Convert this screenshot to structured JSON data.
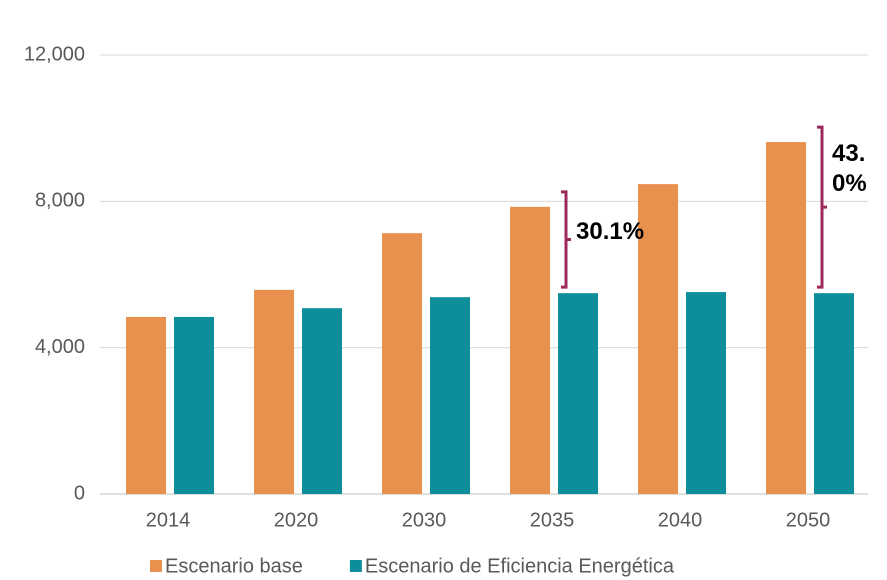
{
  "chart_data": {
    "type": "bar",
    "categories": [
      "2014",
      "2020",
      "2030",
      "2035",
      "2040",
      "2050"
    ],
    "series": [
      {
        "name": "Escenario base",
        "color": "#E8904E",
        "values": [
          4840,
          5580,
          7130,
          7850,
          8470,
          9620
        ]
      },
      {
        "name": "Escenario de Eficiencia Energética",
        "color": "#0E8E9A",
        "values": [
          4840,
          5080,
          5380,
          5490,
          5520,
          5490
        ]
      }
    ],
    "ylim": [
      0,
      12000
    ],
    "yticks": [
      0,
      {
        "value": 4000,
        "label": "4,000"
      },
      {
        "value": 8000,
        "label": "8,000"
      },
      {
        "value": 12000,
        "label": "12,000"
      }
    ],
    "grid": true,
    "legend": "bottom",
    "annotations": [
      "30.1%",
      "43.0%"
    ]
  }
}
